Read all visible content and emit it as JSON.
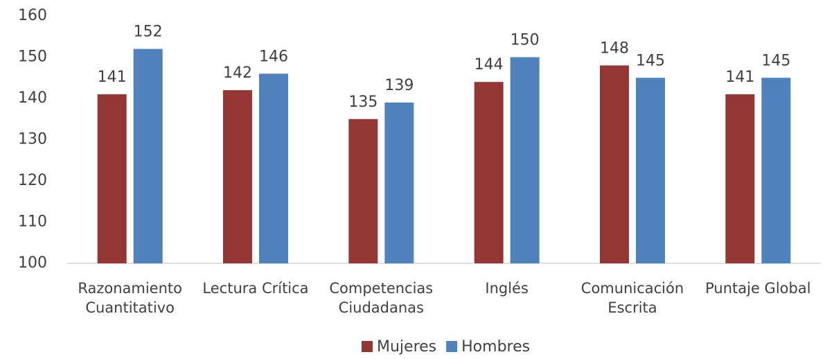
{
  "chart_data": {
    "type": "bar",
    "categories": [
      "Razonamiento Cuantitativo",
      "Lectura Crítica",
      "Competencias Ciudadanas",
      "Inglés",
      "Comunicación Escrita",
      "Puntaje Global"
    ],
    "series": [
      {
        "name": "Mujeres",
        "color": "#943634",
        "values": [
          141,
          142,
          135,
          144,
          148,
          141
        ]
      },
      {
        "name": "Hombres",
        "color": "#4f81bd",
        "values": [
          152,
          146,
          139,
          150,
          145,
          145
        ]
      }
    ],
    "ylim": [
      100,
      160
    ],
    "yticks": [
      100,
      110,
      120,
      130,
      140,
      150,
      160
    ],
    "grid": false,
    "legend": "bottom"
  }
}
